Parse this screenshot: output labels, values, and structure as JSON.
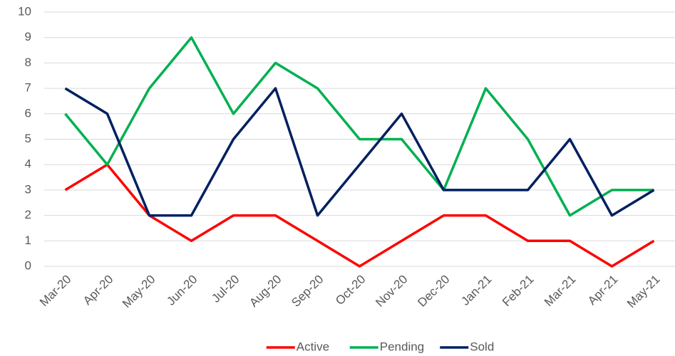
{
  "chart_data": {
    "type": "line",
    "categories": [
      "Mar-20",
      "Apr-20",
      "May-20",
      "Jun-20",
      "Jul-20",
      "Aug-20",
      "Sep-20",
      "Oct-20",
      "Nov-20",
      "Dec-20",
      "Jan-21",
      "Feb-21",
      "Mar-21",
      "Apr-21",
      "May-21"
    ],
    "series": [
      {
        "name": "Active",
        "color": "#ff0000",
        "values": [
          3,
          4,
          2,
          1,
          2,
          2,
          1,
          0,
          1,
          2,
          2,
          1,
          1,
          0,
          1
        ]
      },
      {
        "name": "Pending",
        "color": "#00b050",
        "values": [
          6,
          4,
          7,
          9,
          6,
          8,
          7,
          5,
          5,
          3,
          7,
          5,
          2,
          3,
          3
        ]
      },
      {
        "name": "Sold",
        "color": "#002060",
        "values": [
          7,
          6,
          2,
          2,
          5,
          7,
          2,
          4,
          6,
          3,
          3,
          3,
          5,
          2,
          3
        ]
      }
    ],
    "ylim": [
      0,
      10
    ],
    "yticks": [
      0,
      1,
      2,
      3,
      4,
      5,
      6,
      7,
      8,
      9,
      10
    ],
    "grid": true,
    "legend": "bottom"
  }
}
